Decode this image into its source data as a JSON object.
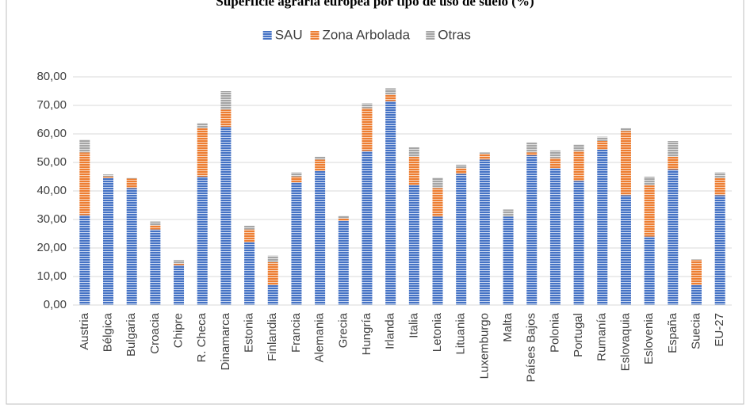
{
  "chart_data": {
    "type": "stacked_bar",
    "title": "Superficie agraria europea por tipo de uso de suelo (%)",
    "categories": [
      "Austria",
      "Bélgica",
      "Bulgaria",
      "Croacia",
      "Chipre",
      "R. Checa",
      "Dinamarca",
      "Estonia",
      "Finlandia",
      "Francia",
      "Alemania",
      "Grecia",
      "Hungría",
      "Irlanda",
      "Italia",
      "Letonia",
      "Lituania",
      "Luxemburgo",
      "Malta",
      "Países Bajos",
      "Polonia",
      "Portugal",
      "Rumanía",
      "Eslovaquia",
      "Eslovenia",
      "España",
      "Suecia",
      "EU-27"
    ],
    "series": [
      {
        "name": "SAU",
        "color": "#4472c4",
        "values": [
          31.5,
          44.5,
          41,
          26.5,
          14,
          45,
          62.5,
          22,
          7,
          43,
          47,
          29.5,
          54,
          71.5,
          42,
          31,
          46,
          51,
          31,
          52.5,
          48,
          43.5,
          54.5,
          38.5,
          24,
          47.5,
          7,
          38.5
        ]
      },
      {
        "name": "Zona Arbolada",
        "color": "#ed7d31",
        "values": [
          22,
          0.5,
          3.3,
          1.5,
          0.5,
          17,
          6,
          4.5,
          8,
          2,
          4,
          0.8,
          15,
          2.3,
          10,
          10,
          2,
          2,
          0,
          1,
          3.5,
          10.5,
          3,
          22.5,
          18,
          4.5,
          8.8,
          6
        ]
      },
      {
        "name": "Otras",
        "color": "#a5a5a5",
        "values": [
          4.5,
          0.8,
          0.3,
          1.3,
          1.3,
          1.8,
          6.5,
          1.3,
          2.3,
          1.5,
          1,
          1,
          1.7,
          2.2,
          3.3,
          3.7,
          1.2,
          0.5,
          2.5,
          3.5,
          2.7,
          2.3,
          1.5,
          1,
          3,
          5.5,
          0.2,
          2
        ]
      }
    ],
    "ylim": [
      0,
      80
    ],
    "yticks": [
      {
        "value": 0,
        "label": "0,00"
      },
      {
        "value": 10,
        "label": "10,00"
      },
      {
        "value": 20,
        "label": "20,00"
      },
      {
        "value": 30,
        "label": "30,00"
      },
      {
        "value": 40,
        "label": "40,00"
      },
      {
        "value": 50,
        "label": "50,00"
      },
      {
        "value": 60,
        "label": "60,00"
      },
      {
        "value": 70,
        "label": "70,00"
      },
      {
        "value": 80,
        "label": "80,00"
      }
    ],
    "grid": true,
    "legend": "top"
  }
}
